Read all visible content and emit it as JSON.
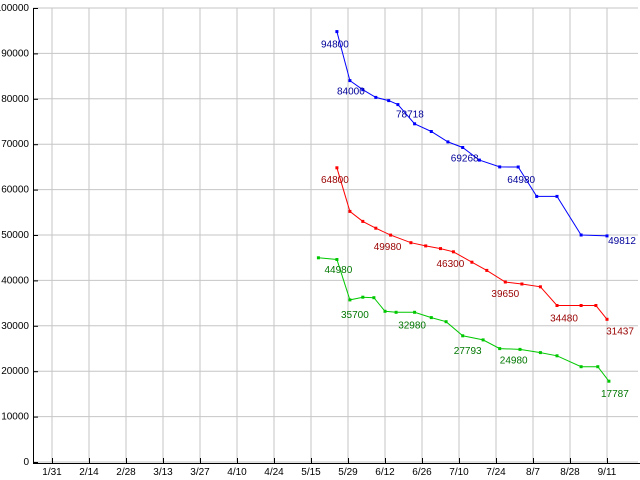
{
  "chart_data": {
    "type": "line",
    "title": "",
    "xlabel": "",
    "ylabel": "",
    "background": "#ffffff",
    "grid": true,
    "grid_color": "#c6c6c6",
    "axis_color": "#000000",
    "tick_label_color": "#000000",
    "y_min": 0,
    "y_max": 100000,
    "y_step": 10000,
    "y_ticks": [
      "0",
      "10000",
      "20000",
      "30000",
      "40000",
      "50000",
      "60000",
      "70000",
      "80000",
      "90000",
      "100000"
    ],
    "x_ticks": [
      "1/31",
      "2/14",
      "2/28",
      "3/13",
      "3/27",
      "4/10",
      "4/24",
      "5/15",
      "5/29",
      "6/12",
      "6/26",
      "7/10",
      "7/24",
      "8/7",
      "8/28",
      "9/11"
    ],
    "legend": "none",
    "series": [
      {
        "name": "blue-series",
        "color": "#0000ff",
        "label_color": "#000099",
        "points": [
          {
            "x": 7.7,
            "y": 94800,
            "label": "94800",
            "dx": -2,
            "dy": 16
          },
          {
            "x": 8.05,
            "y": 84000,
            "label": "84000",
            "dx": 1,
            "dy": 14
          },
          {
            "x": 8.4,
            "y": 82000
          },
          {
            "x": 8.75,
            "y": 80300
          },
          {
            "x": 9.1,
            "y": 79600
          },
          {
            "x": 9.35,
            "y": 78718,
            "label": "78718",
            "dx": 12,
            "dy": 13
          },
          {
            "x": 9.8,
            "y": 74500
          },
          {
            "x": 10.25,
            "y": 72800
          },
          {
            "x": 10.7,
            "y": 70500
          },
          {
            "x": 11.1,
            "y": 69268,
            "label": "69268",
            "dx": 2,
            "dy": 14
          },
          {
            "x": 11.55,
            "y": 66500
          },
          {
            "x": 12.1,
            "y": 65000
          },
          {
            "x": 12.6,
            "y": 64980,
            "label": "64980",
            "dx": 3,
            "dy": 16
          },
          {
            "x": 13.1,
            "y": 58500
          },
          {
            "x": 13.65,
            "y": 58500
          },
          {
            "x": 14.3,
            "y": 50000
          },
          {
            "x": 15.0,
            "y": 49812,
            "label": "49812",
            "dx": 15,
            "dy": 8
          }
        ]
      },
      {
        "name": "red-series",
        "color": "#ff0000",
        "label_color": "#990000",
        "points": [
          {
            "x": 7.7,
            "y": 64800,
            "label": "64800",
            "dx": -2,
            "dy": 15
          },
          {
            "x": 8.05,
            "y": 55200
          },
          {
            "x": 8.4,
            "y": 53000
          },
          {
            "x": 8.75,
            "y": 51500
          },
          {
            "x": 9.15,
            "y": 49980,
            "label": "49980",
            "dx": -3,
            "dy": 15
          },
          {
            "x": 9.7,
            "y": 48300
          },
          {
            "x": 10.1,
            "y": 47600
          },
          {
            "x": 10.5,
            "y": 47000
          },
          {
            "x": 10.85,
            "y": 46300,
            "label": "46300",
            "dx": -3,
            "dy": 15
          },
          {
            "x": 11.35,
            "y": 44000
          },
          {
            "x": 11.75,
            "y": 42200
          },
          {
            "x": 12.25,
            "y": 39650,
            "label": "39650",
            "dx": 0,
            "dy": 15
          },
          {
            "x": 12.7,
            "y": 39200
          },
          {
            "x": 13.2,
            "y": 38600
          },
          {
            "x": 13.65,
            "y": 34480,
            "label": "34480",
            "dx": 7,
            "dy": 16
          },
          {
            "x": 14.3,
            "y": 34480
          },
          {
            "x": 14.7,
            "y": 34480
          },
          {
            "x": 15.0,
            "y": 31437,
            "label": "31437",
            "dx": 13,
            "dy": 15
          }
        ]
      },
      {
        "name": "green-series",
        "color": "#00c800",
        "label_color": "#007700",
        "points": [
          {
            "x": 7.2,
            "y": 44980,
            "label": "44980",
            "dx": 20,
            "dy": 15
          },
          {
            "x": 7.7,
            "y": 44600
          },
          {
            "x": 8.05,
            "y": 35700,
            "label": "35700",
            "dx": 5,
            "dy": 18
          },
          {
            "x": 8.4,
            "y": 36300
          },
          {
            "x": 8.7,
            "y": 36200
          },
          {
            "x": 9.0,
            "y": 33200
          },
          {
            "x": 9.3,
            "y": 32980,
            "label": "32980",
            "dx": 16,
            "dy": 16
          },
          {
            "x": 9.8,
            "y": 32980
          },
          {
            "x": 10.25,
            "y": 31800
          },
          {
            "x": 10.65,
            "y": 30900
          },
          {
            "x": 11.1,
            "y": 27793,
            "label": "27793",
            "dx": 5,
            "dy": 18
          },
          {
            "x": 11.65,
            "y": 26900
          },
          {
            "x": 12.1,
            "y": 24980,
            "label": "24980",
            "dx": 14,
            "dy": 15
          },
          {
            "x": 12.65,
            "y": 24800
          },
          {
            "x": 13.2,
            "y": 24100
          },
          {
            "x": 13.65,
            "y": 23400
          },
          {
            "x": 14.3,
            "y": 21000
          },
          {
            "x": 14.75,
            "y": 21000
          },
          {
            "x": 15.05,
            "y": 17787,
            "label": "17787",
            "dx": 6,
            "dy": 16
          }
        ]
      }
    ]
  }
}
